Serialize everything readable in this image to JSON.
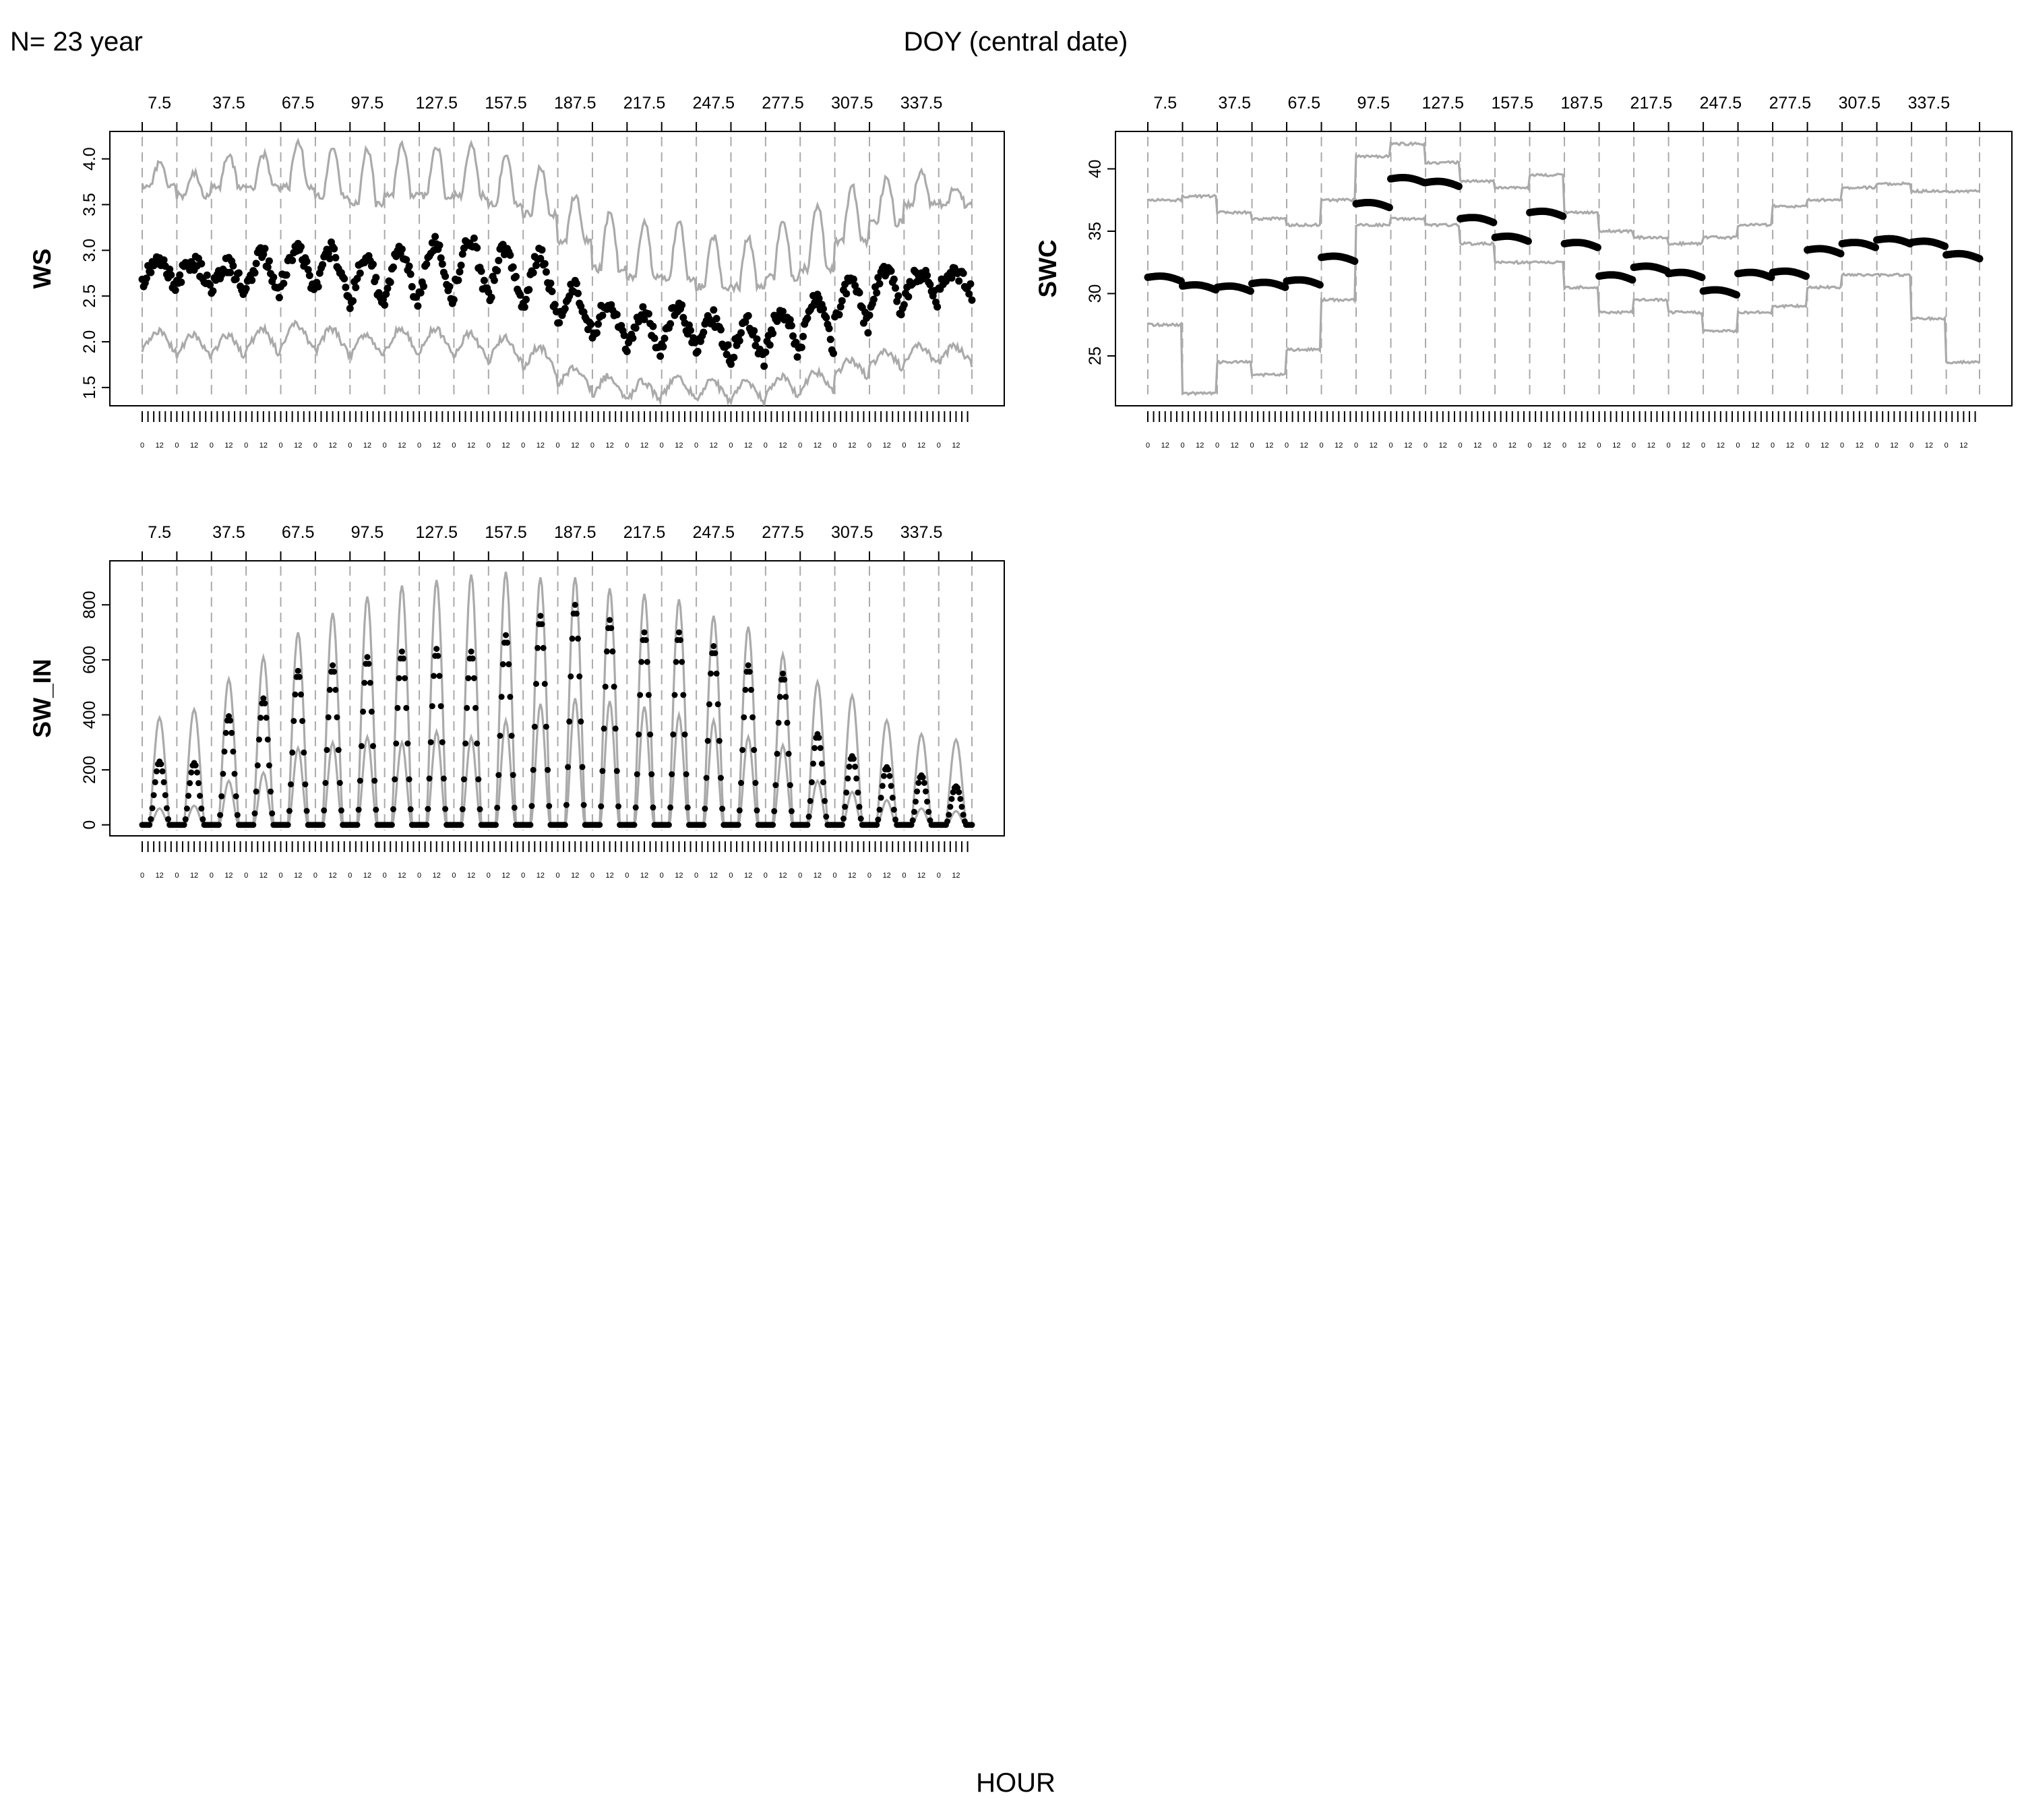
{
  "header": {
    "n_years": "N= 23 year",
    "top_axis_title": "DOY (central date)",
    "bottom_axis_title": "HOUR"
  },
  "colors": {
    "mean": "#000000",
    "band": "#aaaaaa",
    "divider": "#aaaaaa",
    "frame": "#000000"
  },
  "chart_data": [
    {
      "type": "scatter",
      "variable": "WS",
      "title": "",
      "xlabel": "HOUR",
      "ylabel": "WS",
      "top_label": "DOY (central date)",
      "windows": 24,
      "hours_per_window": 24,
      "doy_ticks": [
        "7.5",
        "37.5",
        "67.5",
        "97.5",
        "127.5",
        "157.5",
        "187.5",
        "217.5",
        "247.5",
        "277.5",
        "307.5",
        "337.5"
      ],
      "hour_ticks": [
        "0",
        "12"
      ],
      "ylim": [
        1.3,
        4.3
      ],
      "yticks": [
        "1.5",
        "2.0",
        "2.5",
        "3.0",
        "3.5",
        "4.0"
      ],
      "ytick_values": [
        1.5,
        2.0,
        2.5,
        3.0,
        3.5,
        4.0
      ],
      "mean_by_window": [
        2.75,
        2.75,
        2.7,
        2.75,
        2.8,
        2.75,
        2.65,
        2.7,
        2.75,
        2.8,
        2.7,
        2.65,
        2.35,
        2.2,
        2.1,
        2.15,
        2.05,
        2.0,
        2.1,
        2.2,
        2.4,
        2.55,
        2.6,
        2.65
      ],
      "diurnal_amplitude": [
        0.12,
        0.12,
        0.14,
        0.2,
        0.22,
        0.25,
        0.3,
        0.3,
        0.32,
        0.32,
        0.3,
        0.3,
        0.25,
        0.25,
        0.22,
        0.24,
        0.22,
        0.22,
        0.24,
        0.28,
        0.25,
        0.25,
        0.15,
        0.12
      ],
      "upper_by_window": [
        3.7,
        3.6,
        3.7,
        3.7,
        3.7,
        3.6,
        3.5,
        3.6,
        3.6,
        3.6,
        3.5,
        3.4,
        3.1,
        2.8,
        2.7,
        2.7,
        2.6,
        2.6,
        2.7,
        2.8,
        3.1,
        3.3,
        3.5,
        3.5
      ],
      "upper_amplitude": [
        0.25,
        0.25,
        0.35,
        0.35,
        0.5,
        0.5,
        0.6,
        0.55,
        0.55,
        0.55,
        0.55,
        0.5,
        0.5,
        0.6,
        0.6,
        0.6,
        0.55,
        0.55,
        0.65,
        0.7,
        0.6,
        0.5,
        0.35,
        0.2
      ],
      "lower_by_window": [
        2.0,
        1.95,
        1.95,
        2.0,
        2.05,
        2.0,
        1.95,
        2.0,
        2.0,
        1.95,
        1.9,
        1.8,
        1.6,
        1.5,
        1.45,
        1.5,
        1.45,
        1.45,
        1.5,
        1.55,
        1.7,
        1.8,
        1.85,
        1.85
      ],
      "lower_amplitude": [
        0.12,
        0.12,
        0.12,
        0.14,
        0.14,
        0.14,
        0.14,
        0.14,
        0.14,
        0.14,
        0.14,
        0.14,
        0.12,
        0.12,
        0.12,
        0.12,
        0.12,
        0.12,
        0.12,
        0.12,
        0.1,
        0.1,
        0.1,
        0.1
      ]
    },
    {
      "type": "scatter",
      "variable": "SWC",
      "title": "",
      "xlabel": "HOUR",
      "ylabel": "SWC",
      "top_label": "DOY (central date)",
      "windows": 24,
      "hours_per_window": 24,
      "doy_ticks": [
        "7.5",
        "37.5",
        "67.5",
        "97.5",
        "127.5",
        "157.5",
        "187.5",
        "217.5",
        "247.5",
        "277.5",
        "307.5",
        "337.5"
      ],
      "hour_ticks": [
        "0",
        "12"
      ],
      "ylim": [
        21,
        43
      ],
      "yticks": [
        "25",
        "30",
        "35",
        "40"
      ],
      "ytick_values": [
        25,
        30,
        35,
        40
      ],
      "mean_by_window": [
        31.3,
        30.6,
        30.5,
        30.8,
        31.0,
        32.9,
        37.2,
        39.2,
        38.9,
        36.0,
        34.5,
        36.5,
        34.0,
        31.4,
        32.1,
        31.6,
        30.2,
        31.6,
        31.7,
        33.5,
        34.0,
        34.3,
        34.1,
        33.1
      ],
      "upper_by_window": [
        37.5,
        37.8,
        36.5,
        36.0,
        35.5,
        37.5,
        41.0,
        42.0,
        40.5,
        39.0,
        38.5,
        39.5,
        36.5,
        35.0,
        34.5,
        34.0,
        34.5,
        35.5,
        37.0,
        37.5,
        38.5,
        38.8,
        38.2,
        38.2
      ],
      "lower_by_window": [
        27.5,
        22.0,
        24.5,
        23.5,
        25.5,
        29.5,
        35.5,
        36.0,
        35.5,
        34.0,
        32.5,
        32.5,
        30.5,
        28.5,
        29.5,
        28.5,
        27.0,
        28.5,
        29.0,
        30.5,
        31.5,
        31.5,
        28.0,
        24.5
      ]
    },
    {
      "type": "scatter",
      "variable": "SW_IN",
      "title": "",
      "xlabel": "HOUR",
      "ylabel": "SW_IN",
      "top_label": "DOY (central date)",
      "windows": 24,
      "hours_per_window": 24,
      "doy_ticks": [
        "7.5",
        "37.5",
        "67.5",
        "97.5",
        "127.5",
        "157.5",
        "187.5",
        "217.5",
        "247.5",
        "277.5",
        "307.5",
        "337.5"
      ],
      "hour_ticks": [
        "0",
        "12"
      ],
      "ylim": [
        -40,
        960
      ],
      "yticks": [
        "0",
        "200",
        "400",
        "600",
        "800"
      ],
      "ytick_values": [
        0,
        200,
        400,
        600,
        800
      ],
      "peak_by_window": [
        230,
        225,
        395,
        460,
        560,
        580,
        610,
        630,
        640,
        630,
        690,
        760,
        800,
        745,
        700,
        700,
        650,
        580,
        550,
        330,
        250,
        210,
        180,
        140
      ],
      "upper_peak_by_window": [
        390,
        420,
        530,
        610,
        700,
        770,
        830,
        870,
        890,
        910,
        920,
        900,
        900,
        860,
        840,
        820,
        760,
        720,
        620,
        520,
        470,
        380,
        330,
        310
      ],
      "lower_peak_by_window": [
        60,
        70,
        160,
        190,
        280,
        300,
        320,
        300,
        340,
        320,
        380,
        440,
        460,
        450,
        430,
        400,
        380,
        320,
        290,
        160,
        120,
        90,
        60,
        50
      ]
    }
  ]
}
